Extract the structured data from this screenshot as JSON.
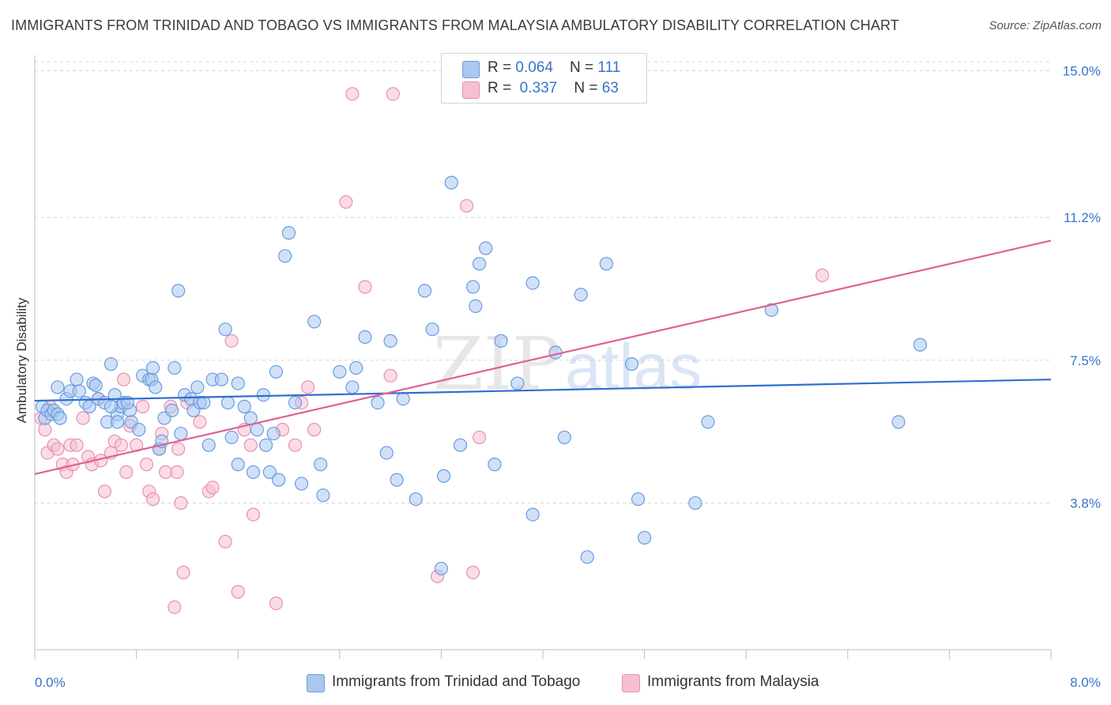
{
  "title": "IMMIGRANTS FROM TRINIDAD AND TOBAGO VS IMMIGRANTS FROM MALAYSIA AMBULATORY DISABILITY CORRELATION CHART",
  "source": "Source: ZipAtlas.com",
  "watermark": {
    "zip": "ZIP",
    "atlas": "atlas"
  },
  "legend": {
    "blue": {
      "r_label": "R = ",
      "r_value": "0.064",
      "n_label": "N = ",
      "n_value": "111"
    },
    "pink": {
      "r_label": "R = ",
      "r_value": "0.337",
      "n_label": "N = ",
      "n_value": "63"
    }
  },
  "colors": {
    "blue_fill": "#a9c8f0",
    "blue_stroke": "#6a9be0",
    "blue_line": "#2f6fd0",
    "pink_fill": "#f6bfd2",
    "pink_stroke": "#e98fb0",
    "pink_line": "#e0628f",
    "tick_label": "#3874c8",
    "grid": "#d5d5d5"
  },
  "chart_data": {
    "type": "scatter",
    "title": "IMMIGRANTS FROM TRINIDAD AND TOBAGO VS IMMIGRANTS FROM MALAYSIA AMBULATORY DISABILITY CORRELATION CHART",
    "xlabel": "",
    "ylabel": "Ambulatory Disability",
    "xlim": [
      0,
      8
    ],
    "ylim": [
      0,
      15.4
    ],
    "x_tick_labels": [
      "0.0%",
      "8.0%"
    ],
    "y_ticks": [
      {
        "value": 3.8,
        "label": "3.8%"
      },
      {
        "value": 7.5,
        "label": "7.5%"
      },
      {
        "value": 11.2,
        "label": "11.2%"
      },
      {
        "value": 15.0,
        "label": "15.0%"
      }
    ],
    "grid": "horizontal dashed",
    "legend_placement": "top-center",
    "series": [
      {
        "name": "Immigrants from Trinidad and Tobago",
        "color": "blue",
        "trend": {
          "x": [
            0,
            8
          ],
          "y": [
            6.45,
            7.0
          ]
        },
        "points": [
          [
            0.06,
            6.3
          ],
          [
            0.08,
            6.0
          ],
          [
            0.1,
            6.2
          ],
          [
            0.13,
            6.1
          ],
          [
            0.15,
            6.2
          ],
          [
            0.18,
            6.1
          ],
          [
            0.18,
            6.8
          ],
          [
            0.25,
            6.5
          ],
          [
            0.28,
            6.7
          ],
          [
            0.33,
            7.0
          ],
          [
            0.35,
            6.7
          ],
          [
            0.4,
            6.4
          ],
          [
            0.43,
            6.3
          ],
          [
            0.46,
            6.9
          ],
          [
            0.48,
            6.85
          ],
          [
            0.5,
            6.5
          ],
          [
            0.57,
            5.9
          ],
          [
            0.6,
            7.4
          ],
          [
            0.63,
            6.6
          ],
          [
            0.65,
            6.1
          ],
          [
            0.68,
            6.3
          ],
          [
            0.7,
            6.4
          ],
          [
            0.75,
            6.2
          ],
          [
            0.76,
            5.9
          ],
          [
            0.82,
            5.7
          ],
          [
            0.85,
            7.1
          ],
          [
            0.9,
            7.0
          ],
          [
            0.92,
            7.0
          ],
          [
            0.93,
            7.3
          ],
          [
            0.95,
            6.8
          ],
          [
            0.98,
            5.2
          ],
          [
            1.0,
            5.4
          ],
          [
            1.02,
            6.0
          ],
          [
            1.08,
            6.2
          ],
          [
            1.1,
            7.3
          ],
          [
            1.13,
            9.3
          ],
          [
            1.15,
            5.6
          ],
          [
            1.18,
            6.6
          ],
          [
            1.23,
            6.5
          ],
          [
            1.25,
            6.2
          ],
          [
            1.28,
            6.8
          ],
          [
            1.3,
            6.4
          ],
          [
            1.33,
            6.4
          ],
          [
            1.37,
            5.3
          ],
          [
            1.4,
            7.0
          ],
          [
            1.47,
            7.0
          ],
          [
            1.5,
            8.3
          ],
          [
            1.52,
            6.4
          ],
          [
            1.55,
            5.5
          ],
          [
            1.6,
            6.9
          ],
          [
            1.65,
            6.3
          ],
          [
            1.7,
            6.0
          ],
          [
            1.72,
            4.6
          ],
          [
            1.75,
            5.7
          ],
          [
            1.8,
            6.6
          ],
          [
            1.82,
            5.3
          ],
          [
            1.85,
            4.6
          ],
          [
            1.88,
            5.6
          ],
          [
            1.9,
            7.2
          ],
          [
            1.92,
            4.4
          ],
          [
            1.97,
            10.2
          ],
          [
            2.0,
            10.8
          ],
          [
            2.05,
            6.4
          ],
          [
            2.1,
            4.3
          ],
          [
            2.2,
            8.5
          ],
          [
            2.25,
            4.8
          ],
          [
            2.27,
            4.0
          ],
          [
            2.4,
            7.2
          ],
          [
            2.5,
            6.8
          ],
          [
            2.53,
            7.3
          ],
          [
            2.6,
            8.1
          ],
          [
            2.7,
            6.4
          ],
          [
            2.77,
            5.1
          ],
          [
            2.8,
            8.0
          ],
          [
            2.85,
            4.4
          ],
          [
            3.0,
            3.9
          ],
          [
            3.07,
            9.3
          ],
          [
            3.13,
            8.3
          ],
          [
            3.2,
            2.1
          ],
          [
            3.22,
            4.5
          ],
          [
            3.28,
            12.1
          ],
          [
            3.35,
            5.3
          ],
          [
            3.45,
            9.4
          ],
          [
            3.47,
            8.9
          ],
          [
            3.5,
            10.0
          ],
          [
            3.55,
            10.4
          ],
          [
            3.62,
            4.8
          ],
          [
            3.67,
            8.0
          ],
          [
            3.8,
            6.9
          ],
          [
            3.92,
            9.5
          ],
          [
            3.92,
            3.5
          ],
          [
            4.1,
            7.7
          ],
          [
            4.17,
            5.5
          ],
          [
            4.3,
            9.2
          ],
          [
            4.35,
            2.4
          ],
          [
            4.5,
            10.0
          ],
          [
            4.7,
            7.4
          ],
          [
            4.75,
            3.9
          ],
          [
            4.8,
            2.9
          ],
          [
            5.2,
            3.8
          ],
          [
            5.3,
            5.9
          ],
          [
            5.8,
            8.8
          ],
          [
            6.8,
            5.9
          ],
          [
            6.97,
            7.9
          ],
          [
            0.2,
            6.0
          ],
          [
            0.55,
            6.4
          ],
          [
            0.6,
            6.3
          ],
          [
            0.73,
            6.4
          ],
          [
            2.9,
            6.5
          ],
          [
            0.65,
            5.9
          ],
          [
            1.6,
            4.8
          ]
        ]
      },
      {
        "name": "Immigrants from Malaysia",
        "color": "pink",
        "trend": {
          "x": [
            0,
            8
          ],
          "y": [
            4.55,
            10.6
          ]
        },
        "points": [
          [
            0.05,
            6.0
          ],
          [
            0.08,
            5.7
          ],
          [
            0.1,
            5.1
          ],
          [
            0.15,
            5.3
          ],
          [
            0.18,
            5.2
          ],
          [
            0.22,
            4.8
          ],
          [
            0.25,
            4.6
          ],
          [
            0.28,
            5.3
          ],
          [
            0.3,
            4.8
          ],
          [
            0.33,
            5.3
          ],
          [
            0.38,
            6.0
          ],
          [
            0.42,
            5.0
          ],
          [
            0.45,
            4.8
          ],
          [
            0.5,
            6.5
          ],
          [
            0.52,
            4.9
          ],
          [
            0.55,
            4.1
          ],
          [
            0.6,
            5.1
          ],
          [
            0.63,
            5.4
          ],
          [
            0.68,
            5.3
          ],
          [
            0.7,
            7.0
          ],
          [
            0.72,
            4.6
          ],
          [
            0.75,
            5.8
          ],
          [
            0.8,
            5.3
          ],
          [
            0.85,
            6.3
          ],
          [
            0.88,
            4.8
          ],
          [
            0.9,
            4.1
          ],
          [
            0.93,
            3.9
          ],
          [
            0.98,
            5.2
          ],
          [
            1.0,
            5.6
          ],
          [
            1.03,
            4.6
          ],
          [
            1.07,
            6.3
          ],
          [
            1.12,
            4.6
          ],
          [
            1.15,
            3.8
          ],
          [
            1.17,
            2.0
          ],
          [
            1.1,
            1.1
          ],
          [
            1.2,
            6.4
          ],
          [
            1.3,
            5.9
          ],
          [
            1.37,
            4.1
          ],
          [
            1.4,
            4.2
          ],
          [
            1.5,
            2.8
          ],
          [
            1.55,
            8.0
          ],
          [
            1.6,
            1.5
          ],
          [
            1.65,
            5.7
          ],
          [
            1.7,
            5.3
          ],
          [
            1.72,
            3.5
          ],
          [
            1.9,
            1.2
          ],
          [
            1.95,
            5.7
          ],
          [
            2.05,
            5.3
          ],
          [
            2.1,
            6.4
          ],
          [
            2.2,
            5.7
          ],
          [
            2.45,
            11.6
          ],
          [
            2.5,
            14.4
          ],
          [
            2.6,
            9.4
          ],
          [
            2.8,
            7.1
          ],
          [
            2.82,
            14.4
          ],
          [
            3.17,
            1.9
          ],
          [
            3.4,
            11.5
          ],
          [
            3.45,
            2.0
          ],
          [
            3.5,
            5.5
          ],
          [
            6.2,
            9.7
          ],
          [
            0.12,
            6.3
          ],
          [
            1.13,
            5.2
          ],
          [
            2.15,
            6.8
          ]
        ]
      }
    ]
  },
  "y_axis_title": "Ambulatory Disability",
  "x_tick_labels": {
    "min": "0.0%",
    "max": "8.0%"
  },
  "bottom_legend": [
    {
      "label": "Immigrants from Trinidad and Tobago"
    },
    {
      "label": "Immigrants from Malaysia"
    }
  ]
}
